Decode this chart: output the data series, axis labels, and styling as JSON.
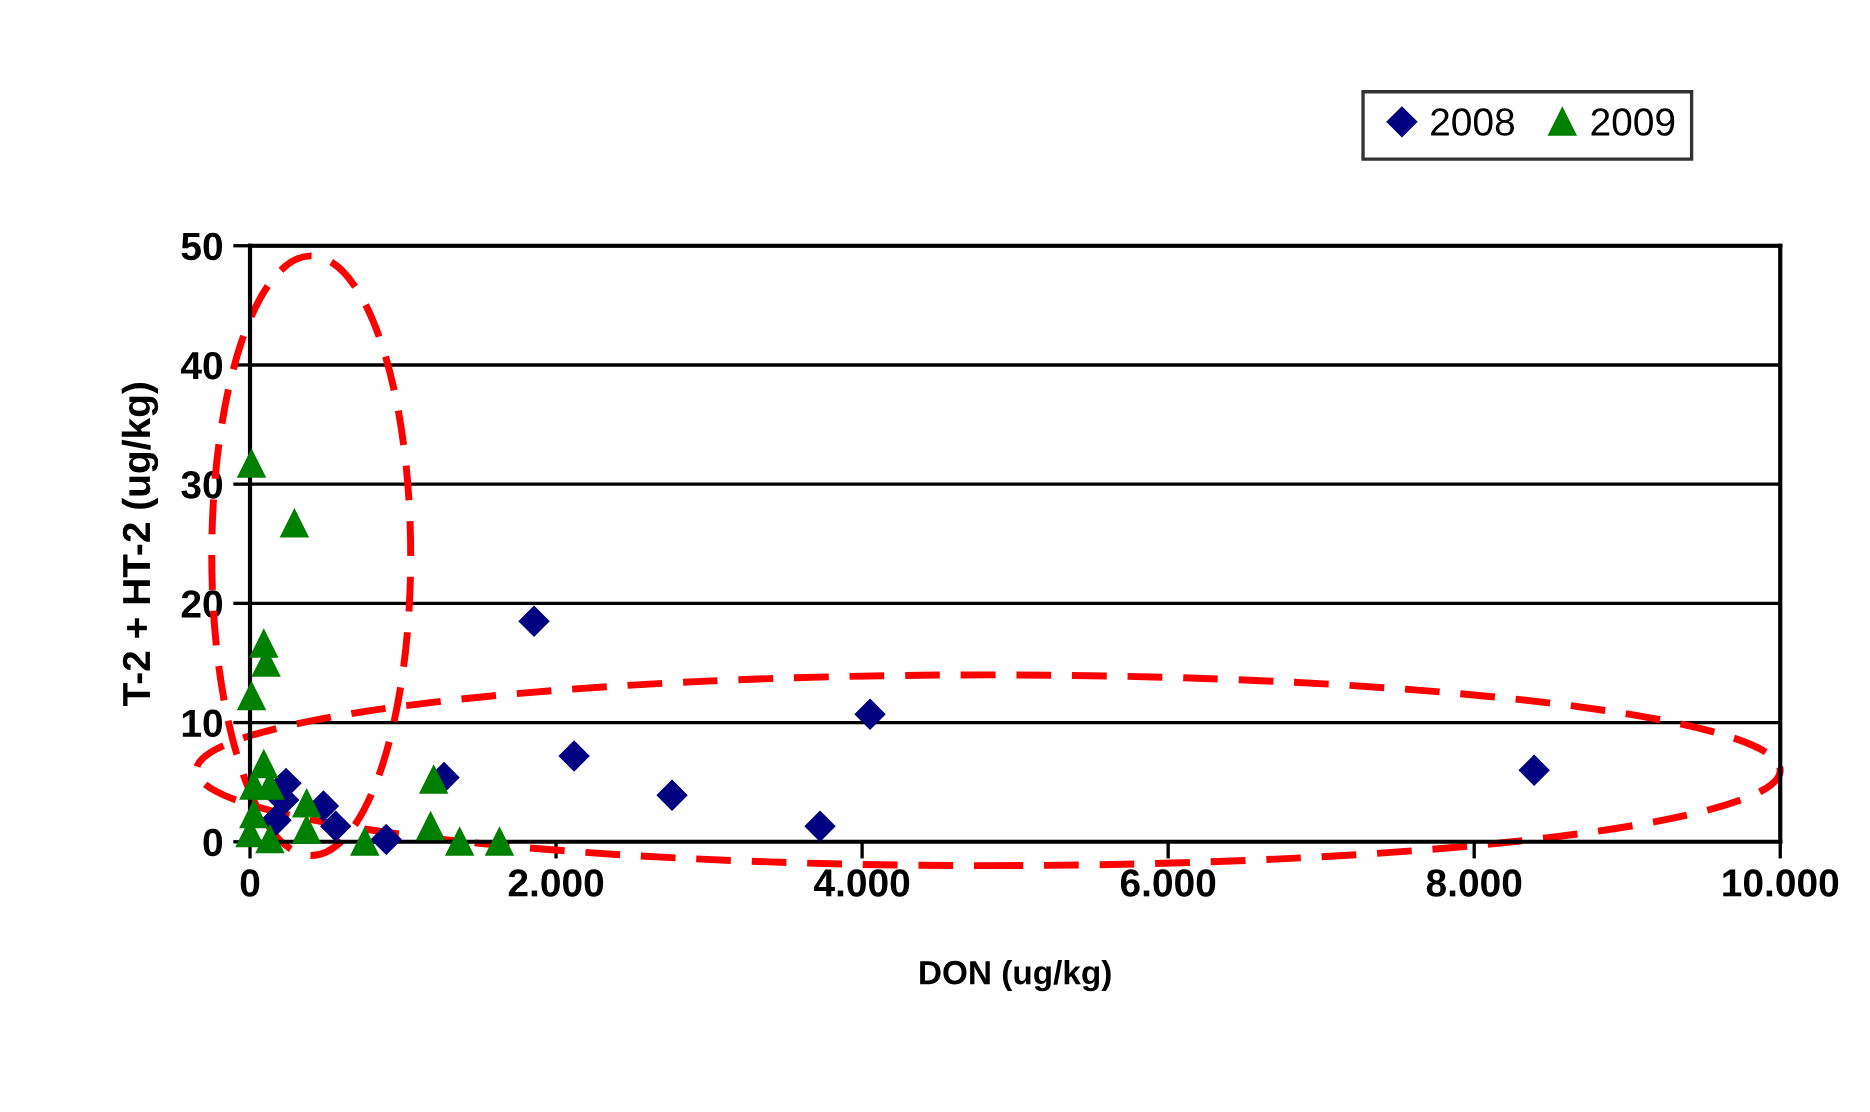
{
  "chart_data": {
    "type": "scatter",
    "xlabel": "DON (ug/kg)",
    "ylabel": "T-2 + HT-2 (ug/kg)",
    "xlim": [
      0,
      10000
    ],
    "ylim": [
      0,
      50
    ],
    "xticks": [
      0,
      {
        "value": 2000,
        "label": "2.000"
      },
      {
        "value": 4000,
        "label": "4.000"
      },
      {
        "value": 6000,
        "label": "6.000"
      },
      {
        "value": 8000,
        "label": "8.000"
      },
      {
        "value": 10000,
        "label": "10.000"
      }
    ],
    "yticks": [
      0,
      10,
      20,
      30,
      40,
      50
    ],
    "grid": "y",
    "legend": "top right",
    "series": [
      {
        "name": "2008",
        "color": "#000080",
        "marker": "diamond",
        "x": [
          1856,
          1268,
          2118,
          2758,
          3725,
          4052,
          8392,
          235,
          220,
          170,
          480,
          560,
          680,
          890
        ],
        "values": [
          18.5,
          5.4,
          7.2,
          3.9,
          1.3,
          10.7,
          6.0,
          4.9,
          3.5,
          1.8,
          3.0,
          1.3,
          null,
          0.2
        ]
      },
      {
        "name": "2009",
        "color": "#008000",
        "marker": "triangle",
        "x": [
          10,
          290,
          90,
          105,
          10,
          90,
          25,
          130,
          370,
          25,
          0,
          260,
          370,
          130,
          1200,
          1180,
          1370,
          1630,
          750
        ],
        "values": [
          31.7,
          26.7,
          16.6,
          15,
          12.2,
          6.5,
          4.7,
          4.7,
          3.2,
          2.3,
          0.7,
          null,
          1,
          0.2,
          5.2,
          1.3,
          0,
          0,
          0
        ]
      }
    ]
  }
}
